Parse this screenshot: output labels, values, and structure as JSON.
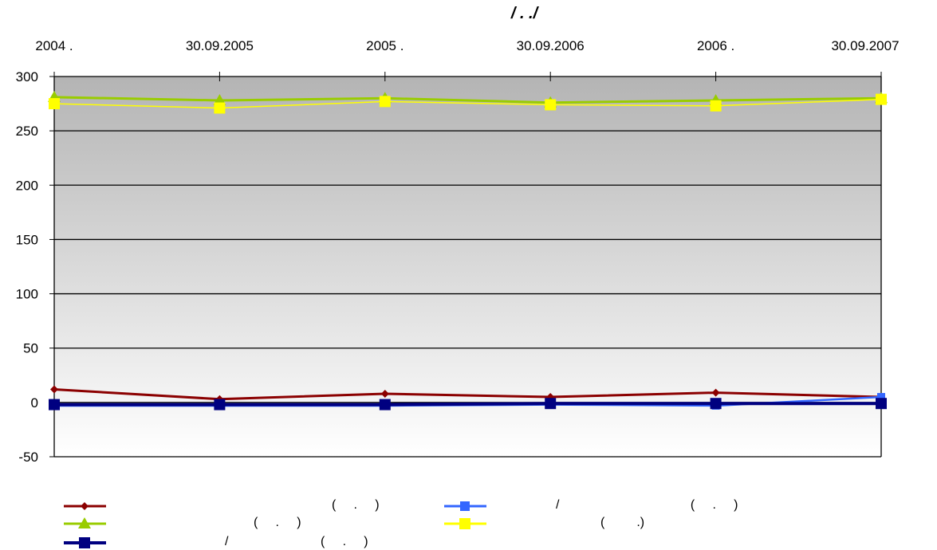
{
  "chart_data": {
    "type": "line",
    "title": "/      .  ./",
    "x_ticks": [
      "2004 .",
      "30.09.2005",
      "2005 .",
      "30.09.2006",
      "2006 .",
      "30.09.2007"
    ],
    "ylim": [
      -50,
      300
    ],
    "y_ticks": [
      -50,
      0,
      50,
      100,
      150,
      200,
      250,
      300
    ],
    "grid": true,
    "legend_position": "bottom",
    "series": [
      {
        "label": "(     .     )",
        "color": "#8B0000",
        "marker": "diamond",
        "values": [
          12,
          3,
          8,
          5,
          9,
          5
        ]
      },
      {
        "label": "(     .     )",
        "color": "#99CC00",
        "marker": "triangle",
        "values": [
          281,
          278,
          280,
          276,
          278,
          280
        ]
      },
      {
        "label": "/                          (     .     )",
        "color": "#000080",
        "marker": "square",
        "values": [
          -2,
          -2,
          -2,
          -1,
          -1,
          -1
        ]
      },
      {
        "label": "/                                     (     .     )",
        "color": "#3366FF",
        "marker": "square",
        "values": [
          -3,
          -3,
          -3,
          -2,
          -3,
          5
        ]
      },
      {
        "label": "(         .)",
        "color": "#FFFF00",
        "marker": "square",
        "values": [
          275,
          271,
          277,
          274,
          273,
          279
        ]
      }
    ]
  }
}
